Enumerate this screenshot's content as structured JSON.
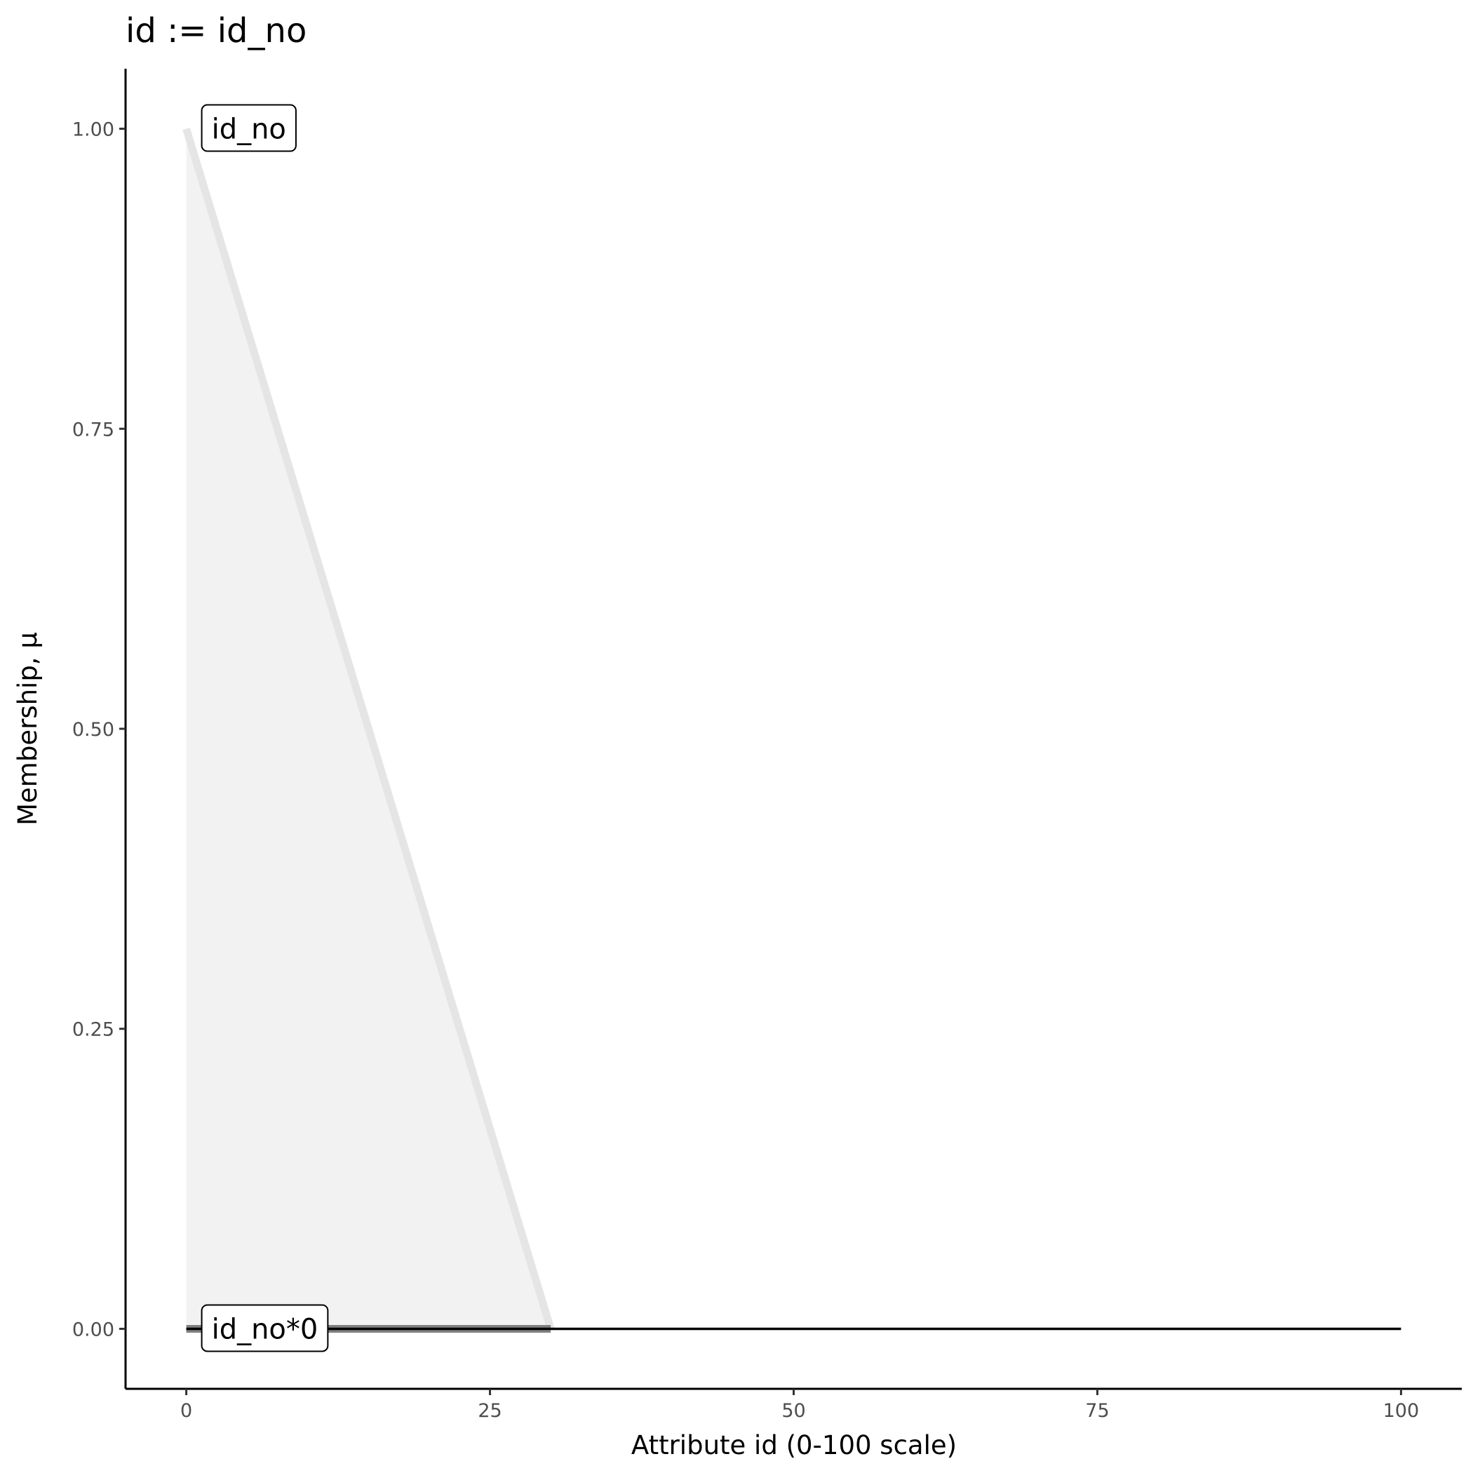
{
  "chart_data": {
    "type": "line",
    "title": "id := id_no",
    "xlabel": "Attribute id (0-100 scale)",
    "ylabel": "Membership, μ",
    "xlim": [
      -5,
      105
    ],
    "ylim": [
      -0.05,
      1.05
    ],
    "x_ticks": [
      "0",
      "25",
      "50",
      "75",
      "100"
    ],
    "y_ticks": [
      "0.00",
      "0.25",
      "0.50",
      "0.75",
      "1.00"
    ],
    "grid": false,
    "series": [
      {
        "name": "id_no",
        "x": [
          0,
          30
        ],
        "y": [
          1,
          0
        ],
        "color": "#e5e5e5",
        "fill": "#f2f2f2"
      },
      {
        "name": "id_no*0",
        "x": [
          0,
          30
        ],
        "y": [
          0,
          0
        ],
        "color": "#808080"
      },
      {
        "x": [
          0,
          100
        ],
        "y": [
          0,
          0
        ],
        "color": "#000000"
      }
    ],
    "labels": [
      {
        "text": "id_no",
        "x": 0,
        "y": 1
      },
      {
        "text": "id_no*0",
        "x": 0,
        "y": 0
      }
    ]
  }
}
